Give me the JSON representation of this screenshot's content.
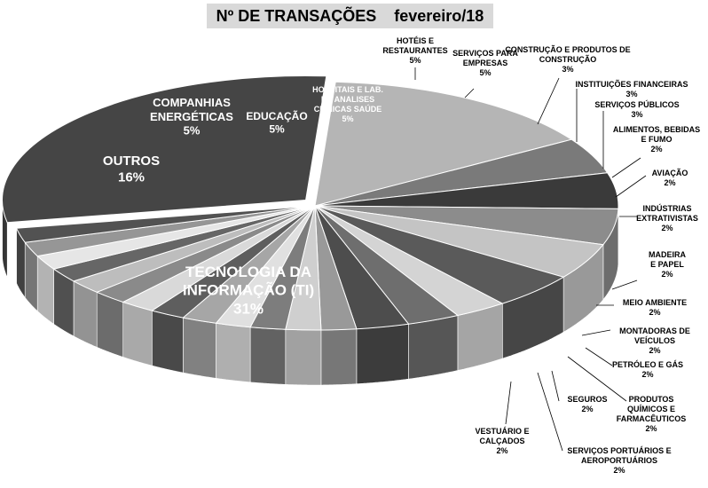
{
  "chart_data": {
    "type": "pie",
    "title": "Nº DE TRANSAÇÕES    fevereiro/18",
    "slices": [
      {
        "label": "TECNOLOGIA DA INFORMAÇÃO (TI)",
        "value": 31,
        "value_label": "31%",
        "color": "#454545"
      },
      {
        "label": "OUTROS",
        "value": 16,
        "value_label": "16%",
        "color": "#b5b5b5"
      },
      {
        "label": "COMPANHIAS ENERGÉTICAS",
        "value": 5,
        "value_label": "5%",
        "color": "#7a7a7a"
      },
      {
        "label": "EDUCAÇÃO",
        "value": 5,
        "value_label": "5%",
        "color": "#3a3a3a"
      },
      {
        "label": "HOSPITAIS E LAB. DE ANALISES CLÍNICAS SAÚDE",
        "value": 5,
        "value_label": "5%",
        "color": "#8c8c8c"
      },
      {
        "label": "HOTÉIS E RESTAURANTES",
        "value": 5,
        "value_label": "5%",
        "color": "#c4c4c4"
      },
      {
        "label": "SERVIÇOS PARA EMPRESAS",
        "value": 5,
        "value_label": "5%",
        "color": "#5a5a5a"
      },
      {
        "label": "CONSTRUÇÃO E PRODUTOS DE CONSTRUÇÃO",
        "value": 3,
        "value_label": "3%",
        "color": "#d4d4d4"
      },
      {
        "label": "INSTITUIÇÕES FINANCEIRAS",
        "value": 3,
        "value_label": "3%",
        "color": "#6e6e6e"
      },
      {
        "label": "SERVIÇOS PÚBLICOS",
        "value": 3,
        "value_label": "3%",
        "color": "#4d4d4d"
      },
      {
        "label": "ALIMENTOS, BEBIDAS E FUMO",
        "value": 2,
        "value_label": "2%",
        "color": "#999999"
      },
      {
        "label": "AVIAÇÃO",
        "value": 2,
        "value_label": "2%",
        "color": "#cfcfcf"
      },
      {
        "label": "INDÚSTRIAS EXTRATIVISTAS",
        "value": 2,
        "value_label": "2%",
        "color": "#7d7d7d"
      },
      {
        "label": "",
        "value": 2,
        "value_label": "",
        "color": "#e0e0e0"
      },
      {
        "label": "MADEIRA E PAPEL",
        "value": 2,
        "value_label": "2%",
        "color": "#a6a6a6"
      },
      {
        "label": "",
        "value": 2,
        "value_label": "",
        "color": "#5e5e5e"
      },
      {
        "label": "MEIO AMBIENTE",
        "value": 2,
        "value_label": "2%",
        "color": "#d9d9d9"
      },
      {
        "label": "MONTADORAS DE VEÍCULOS",
        "value": 2,
        "value_label": "2%",
        "color": "#8a8a8a"
      },
      {
        "label": "PETRÓLEO E GÁS",
        "value": 2,
        "value_label": "2%",
        "color": "#bdbdbd"
      },
      {
        "label": "PRODUTOS QUÍMICOS E FARMACÊUTICOS",
        "value": 2,
        "value_label": "2%",
        "color": "#666666"
      },
      {
        "label": "SEGUROS",
        "value": 2,
        "value_label": "2%",
        "color": "#e6e6e6"
      },
      {
        "label": "SERVIÇOS PORTUÁRIOS E AEROPORTUÁRIOS",
        "value": 2,
        "value_label": "2%",
        "color": "#969696"
      },
      {
        "label": "VESTUÁRIO E CALÇADOS",
        "value": 2,
        "value_label": "2%",
        "color": "#525252"
      }
    ],
    "legend": "none"
  }
}
